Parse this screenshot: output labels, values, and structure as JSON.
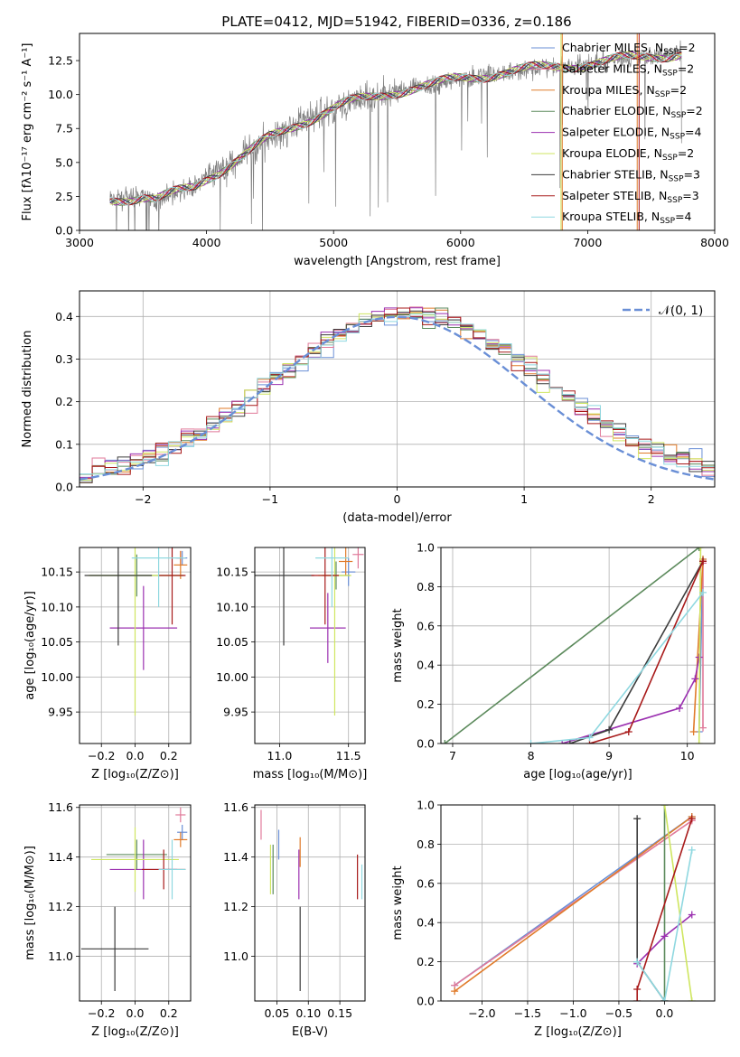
{
  "figure": {
    "title": "PLATE=0412, MJD=51942, FIBERID=0336, z=0.186"
  },
  "fit_colors": {
    "Chabrier MILES": "#6a8fd6",
    "Salpeter MILES": "#e07a9a",
    "Kroupa MILES": "#e07b2a",
    "Chabrier ELODIE": "#5c8a5c",
    "Salpeter ELODIE": "#9b30b0",
    "Kroupa ELODIE": "#cfe660",
    "Chabrier STELIB": "#3c3c3c",
    "Salpeter STELIB": "#a81a1a",
    "Kroupa STELIB": "#8fd8e0"
  },
  "chart_data": [
    {
      "id": "spectrum",
      "type": "line",
      "title": "PLATE=0412, MJD=51942, FIBERID=0336, z=0.186",
      "xlabel": "wavelength [Angstrom, rest frame]",
      "ylabel": "Flux [fλ10⁻¹⁷ erg cm⁻² s⁻¹ A⁻¹]",
      "xlim": [
        3000,
        8000
      ],
      "ylim": [
        0,
        14.5
      ],
      "xticks": [
        3000,
        4000,
        5000,
        6000,
        7000,
        8000
      ],
      "yticks": [
        0.0,
        2.5,
        5.0,
        7.5,
        10.0,
        12.5
      ],
      "ytick_labels": [
        "0.0",
        "2.5",
        "5.0",
        "7.5",
        "10.0",
        "12.5"
      ],
      "legend_position": "top-right",
      "legend": [
        {
          "label": "Chabrier MILES, N",
          "sub": "SSP",
          "rest": "=2",
          "color": "#6a8fd6"
        },
        {
          "label": "Salpeter MILES, N",
          "sub": "SSP",
          "rest": "=2",
          "color": "#e07a9a"
        },
        {
          "label": "Kroupa MILES, N",
          "sub": "SSP",
          "rest": "=2",
          "color": "#e07b2a"
        },
        {
          "label": "Chabrier ELODIE, N",
          "sub": "SSP",
          "rest": "=2",
          "color": "#5c8a5c"
        },
        {
          "label": "Salpeter ELODIE, N",
          "sub": "SSP",
          "rest": "=4",
          "color": "#9b30b0"
        },
        {
          "label": "Kroupa ELODIE, N",
          "sub": "SSP",
          "rest": "=2",
          "color": "#cfe660"
        },
        {
          "label": "Chabrier STELIB, N",
          "sub": "SSP",
          "rest": "=3",
          "color": "#3c3c3c"
        },
        {
          "label": "Salpeter STELIB, N",
          "sub": "SSP",
          "rest": "=3",
          "color": "#a81a1a"
        },
        {
          "label": "Kroupa STELIB, N",
          "sub": "SSP",
          "rest": "=4",
          "color": "#8fd8e0"
        }
      ],
      "data_envelope": {
        "x": [
          3240,
          3500,
          3600,
          3900,
          4000,
          4300,
          4500,
          4700,
          4900,
          5100,
          5300,
          5500,
          5800,
          6000,
          6300,
          6600,
          6900,
          7200,
          7500,
          7740
        ],
        "y": [
          2.3,
          2.5,
          2.2,
          3.2,
          3.9,
          5.5,
          6.8,
          7.8,
          8.6,
          9.3,
          9.8,
          10.3,
          10.7,
          11.2,
          11.6,
          11.9,
          12.2,
          12.5,
          12.8,
          13.1
        ]
      }
    },
    {
      "id": "residuals",
      "type": "line",
      "xlabel": "(data-model)/error",
      "ylabel": "Normed distribution",
      "xlim": [
        -2.5,
        2.5
      ],
      "ylim": [
        0,
        0.46
      ],
      "xticks": [
        -2,
        -1,
        0,
        1,
        2
      ],
      "xtick_labels": [
        "−2",
        "−1",
        "0",
        "1",
        "2"
      ],
      "yticks": [
        0.0,
        0.1,
        0.2,
        0.3,
        0.4
      ],
      "ytick_labels": [
        "0.0",
        "0.1",
        "0.2",
        "0.3",
        "0.4"
      ],
      "grid": true,
      "legend_position": "top-right",
      "legend_label": "𝒩(0, 1)",
      "gaussian": {
        "mu": 0,
        "sigma": 1,
        "color": "#6a8fd6"
      }
    },
    {
      "id": "age_vs_Z",
      "type": "scatter",
      "xlabel": "Z [log₁₀(Z/Z⊙)]",
      "ylabel": "age  [log₁₀(age/yr)]",
      "xlim": [
        -0.33,
        0.33
      ],
      "ylim": [
        9.905,
        10.185
      ],
      "xticks": [
        -0.2,
        0.0,
        0.2
      ],
      "xtick_labels": [
        "−0.2",
        "0.0",
        "0.2"
      ],
      "yticks": [
        9.95,
        10.0,
        10.05,
        10.1,
        10.15
      ],
      "ytick_labels": [
        "9.95",
        "10.00",
        "10.05",
        "10.10",
        "10.15"
      ],
      "grid": true,
      "points": [
        {
          "fit": "Chabrier MILES",
          "x": 0.28,
          "y": 10.17,
          "xerr": 0.03,
          "yerr": 0.01
        },
        {
          "fit": "Salpeter MILES",
          "x": 0.27,
          "y": 10.17,
          "xerr": 0.03,
          "yerr": 0.01
        },
        {
          "fit": "Kroupa MILES",
          "x": 0.27,
          "y": 10.16,
          "xerr": 0.04,
          "yerr": 0.02
        },
        {
          "fit": "Chabrier ELODIE",
          "x": 0.01,
          "y": 10.145,
          "xerr": 0.28,
          "yerr": 0.03
        },
        {
          "fit": "Salpeter ELODIE",
          "x": 0.05,
          "y": 10.07,
          "xerr": 0.2,
          "yerr": 0.06
        },
        {
          "fit": "Kroupa ELODIE",
          "x": 0.0,
          "y": 10.145,
          "xerr": 0.28,
          "yerr": 0.2
        },
        {
          "fit": "Chabrier STELIB",
          "x": -0.1,
          "y": 10.145,
          "xerr": 0.2,
          "yerr": 0.1
        },
        {
          "fit": "Salpeter STELIB",
          "x": 0.22,
          "y": 10.145,
          "xerr": 0.08,
          "yerr": 0.07
        },
        {
          "fit": "Kroupa STELIB",
          "x": 0.14,
          "y": 10.17,
          "xerr": 0.16,
          "yerr": 0.07
        }
      ]
    },
    {
      "id": "age_vs_mass",
      "type": "scatter",
      "xlabel": "mass [log₁₀(M/M⊙)]",
      "xlim": [
        10.82,
        11.62
      ],
      "ylim": [
        9.905,
        10.185
      ],
      "xticks": [
        11.0,
        11.5
      ],
      "xtick_labels": [
        "11.0",
        "11.5"
      ],
      "yticks": [
        9.95,
        10.0,
        10.05,
        10.1,
        10.15
      ],
      "ytick_labels": [
        "9.95",
        "10.00",
        "10.05",
        "10.10",
        "10.15"
      ],
      "grid": true,
      "points": [
        {
          "fit": "Chabrier MILES",
          "x": 11.5,
          "y": 10.15,
          "xerr": 0.05,
          "yerr": 0.02
        },
        {
          "fit": "Salpeter MILES",
          "x": 11.57,
          "y": 10.175,
          "xerr": 0.04,
          "yerr": 0.02
        },
        {
          "fit": "Kroupa MILES",
          "x": 11.48,
          "y": 10.165,
          "xerr": 0.05,
          "yerr": 0.02
        },
        {
          "fit": "Chabrier ELODIE",
          "x": 11.41,
          "y": 10.145,
          "xerr": 0.1,
          "yerr": 0.02
        },
        {
          "fit": "Salpeter ELODIE",
          "x": 11.35,
          "y": 10.07,
          "xerr": 0.13,
          "yerr": 0.05
        },
        {
          "fit": "Kroupa ELODIE",
          "x": 11.4,
          "y": 10.145,
          "xerr": 0.12,
          "yerr": 0.2
        },
        {
          "fit": "Chabrier STELIB",
          "x": 11.03,
          "y": 10.145,
          "xerr": 0.22,
          "yerr": 0.1
        },
        {
          "fit": "Salpeter STELIB",
          "x": 11.33,
          "y": 10.145,
          "xerr": 0.1,
          "yerr": 0.07
        },
        {
          "fit": "Kroupa STELIB",
          "x": 11.38,
          "y": 10.17,
          "xerr": 0.12,
          "yerr": 0.07
        }
      ]
    },
    {
      "id": "massweight_vs_age",
      "type": "line",
      "xlabel": "age  [log₁₀(age/yr)]",
      "ylabel": "mass weight",
      "xlim": [
        6.85,
        10.35
      ],
      "ylim": [
        0,
        1
      ],
      "xticks": [
        7,
        8,
        9,
        10
      ],
      "xtick_labels": [
        "7",
        "8",
        "9",
        "10"
      ],
      "yticks": [
        0.0,
        0.2,
        0.4,
        0.6,
        0.8,
        1.0
      ],
      "ytick_labels": [
        "0.0",
        "0.2",
        "0.4",
        "0.6",
        "0.8",
        "1.0"
      ],
      "grid": true,
      "series": [
        {
          "fit": "Chabrier MILES",
          "x": [
            10.15,
            10.2
          ],
          "y": [
            0.06,
            0.94
          ]
        },
        {
          "fit": "Salpeter MILES",
          "x": [
            10.2,
            10.2
          ],
          "y": [
            0.08,
            0.92
          ]
        },
        {
          "fit": "Kroupa MILES",
          "x": [
            10.08,
            10.2
          ],
          "y": [
            0.06,
            0.94
          ]
        },
        {
          "fit": "Chabrier ELODIE",
          "x": [
            6.9,
            10.15
          ],
          "y": [
            0.0,
            1.0
          ]
        },
        {
          "fit": "Salpeter ELODIE",
          "x": [
            8.4,
            9.9,
            10.1,
            10.15
          ],
          "y": [
            0.0,
            0.18,
            0.33,
            0.44
          ]
        },
        {
          "fit": "Kroupa ELODIE",
          "x": [
            10.15,
            10.17
          ],
          "y": [
            0.0,
            1.0
          ]
        },
        {
          "fit": "Chabrier STELIB",
          "x": [
            8.5,
            9.0,
            10.2
          ],
          "y": [
            0.0,
            0.07,
            0.93
          ]
        },
        {
          "fit": "Salpeter STELIB",
          "x": [
            8.75,
            9.25,
            10.2
          ],
          "y": [
            0.0,
            0.06,
            0.93
          ]
        },
        {
          "fit": "Kroupa STELIB",
          "x": [
            8.0,
            8.75,
            10.2
          ],
          "y": [
            0.0,
            0.03,
            0.77
          ]
        }
      ]
    },
    {
      "id": "mass_vs_Z",
      "type": "scatter",
      "xlabel": "Z [log₁₀(Z/Z⊙)]",
      "ylabel": "mass [log₁₀(M/M⊙)]",
      "xlim": [
        -0.33,
        0.33
      ],
      "ylim": [
        10.82,
        11.61
      ],
      "xticks": [
        -0.2,
        0.0,
        0.2
      ],
      "xtick_labels": [
        "−0.2",
        "0.0",
        "0.2"
      ],
      "yticks": [
        11.0,
        11.2,
        11.4,
        11.6
      ],
      "ytick_labels": [
        "11.0",
        "11.2",
        "11.4",
        "11.6"
      ],
      "grid": true,
      "points": [
        {
          "fit": "Chabrier MILES",
          "x": 0.28,
          "y": 11.5,
          "xerr": 0.03,
          "yerr": 0.03
        },
        {
          "fit": "Salpeter MILES",
          "x": 0.27,
          "y": 11.57,
          "xerr": 0.03,
          "yerr": 0.03
        },
        {
          "fit": "Kroupa MILES",
          "x": 0.27,
          "y": 11.47,
          "xerr": 0.04,
          "yerr": 0.03
        },
        {
          "fit": "Chabrier ELODIE",
          "x": 0.01,
          "y": 11.41,
          "xerr": 0.18,
          "yerr": 0.06
        },
        {
          "fit": "Salpeter ELODIE",
          "x": 0.05,
          "y": 11.35,
          "xerr": 0.2,
          "yerr": 0.12
        },
        {
          "fit": "Kroupa ELODIE",
          "x": 0.0,
          "y": 11.39,
          "xerr": 0.26,
          "yerr": 0.13
        },
        {
          "fit": "Chabrier STELIB",
          "x": -0.12,
          "y": 11.03,
          "xerr": 0.2,
          "yerr": 0.17
        },
        {
          "fit": "Salpeter STELIB",
          "x": 0.17,
          "y": 11.35,
          "xerr": 0.13,
          "yerr": 0.08
        },
        {
          "fit": "Kroupa STELIB",
          "x": 0.22,
          "y": 11.35,
          "xerr": 0.08,
          "yerr": 0.12
        }
      ]
    },
    {
      "id": "mass_vs_ebv",
      "type": "scatter",
      "xlabel": "E(B-V)",
      "xlim": [
        0.015,
        0.19
      ],
      "ylim": [
        10.82,
        11.61
      ],
      "xticks": [
        0.05,
        0.1,
        0.15
      ],
      "xtick_labels": [
        "0.05",
        "0.10",
        "0.15"
      ],
      "yticks": [
        11.0,
        11.2,
        11.4,
        11.6
      ],
      "ytick_labels": [
        "11.0",
        "11.2",
        "11.4",
        "11.6"
      ],
      "grid": true,
      "points": [
        {
          "fit": "Chabrier MILES",
          "x": 0.053,
          "y": 11.45,
          "xerr": 0.0,
          "yerr": 0.06
        },
        {
          "fit": "Salpeter MILES",
          "x": 0.025,
          "y": 11.53,
          "xerr": 0.0,
          "yerr": 0.06
        },
        {
          "fit": "Kroupa MILES",
          "x": 0.087,
          "y": 11.42,
          "xerr": 0.0,
          "yerr": 0.06
        },
        {
          "fit": "Chabrier ELODIE",
          "x": 0.044,
          "y": 11.35,
          "xerr": 0.0,
          "yerr": 0.1
        },
        {
          "fit": "Salpeter ELODIE",
          "x": 0.085,
          "y": 11.33,
          "xerr": 0.0,
          "yerr": 0.1
        },
        {
          "fit": "Kroupa ELODIE",
          "x": 0.04,
          "y": 11.35,
          "xerr": 0.0,
          "yerr": 0.1
        },
        {
          "fit": "Chabrier STELIB",
          "x": 0.087,
          "y": 11.03,
          "xerr": 0.0,
          "yerr": 0.17
        },
        {
          "fit": "Salpeter STELIB",
          "x": 0.178,
          "y": 11.32,
          "xerr": 0.0,
          "yerr": 0.09
        },
        {
          "fit": "Kroupa STELIB",
          "x": 0.185,
          "y": 11.3,
          "xerr": 0.0,
          "yerr": 0.07
        }
      ]
    },
    {
      "id": "massweight_vs_Z",
      "type": "line",
      "xlabel": "Z [log₁₀(Z/Z⊙)]",
      "ylabel": "mass weight",
      "xlim": [
        -2.45,
        0.55
      ],
      "ylim": [
        0,
        1
      ],
      "xticks": [
        -2.0,
        -1.5,
        -1.0,
        -0.5,
        0.0
      ],
      "xtick_labels": [
        "−2.0",
        "−1.5",
        "−1.0",
        "−0.5",
        "0.0"
      ],
      "yticks": [
        0.0,
        0.2,
        0.4,
        0.6,
        0.8,
        1.0
      ],
      "ytick_labels": [
        "0.0",
        "0.2",
        "0.4",
        "0.6",
        "0.8",
        "1.0"
      ],
      "grid": true,
      "series": [
        {
          "fit": "Chabrier MILES",
          "x": [
            -2.3,
            0.3
          ],
          "y": [
            0.08,
            0.94
          ]
        },
        {
          "fit": "Salpeter MILES",
          "x": [
            -2.3,
            0.3
          ],
          "y": [
            0.08,
            0.92
          ]
        },
        {
          "fit": "Kroupa MILES",
          "x": [
            -2.3,
            0.3
          ],
          "y": [
            0.05,
            0.94
          ]
        },
        {
          "fit": "Chabrier ELODIE",
          "x": [
            0.0,
            0.0
          ],
          "y": [
            0.0,
            1.0
          ]
        },
        {
          "fit": "Salpeter ELODIE",
          "x": [
            -0.3,
            0.0,
            0.3
          ],
          "y": [
            0.19,
            0.33,
            0.44
          ]
        },
        {
          "fit": "Kroupa ELODIE",
          "x": [
            0.0,
            0.3
          ],
          "y": [
            1.0,
            0.0
          ]
        },
        {
          "fit": "Chabrier STELIB",
          "x": [
            -0.3,
            -0.3,
            0.0
          ],
          "y": [
            0.93,
            0.2,
            0.0
          ]
        },
        {
          "fit": "Salpeter STELIB",
          "x": [
            -0.3,
            -0.3,
            0.3
          ],
          "y": [
            0.0,
            0.06,
            0.93
          ]
        },
        {
          "fit": "Kroupa STELIB",
          "x": [
            -0.3,
            0.0,
            0.3
          ],
          "y": [
            0.2,
            0.0,
            0.77
          ]
        }
      ]
    }
  ]
}
